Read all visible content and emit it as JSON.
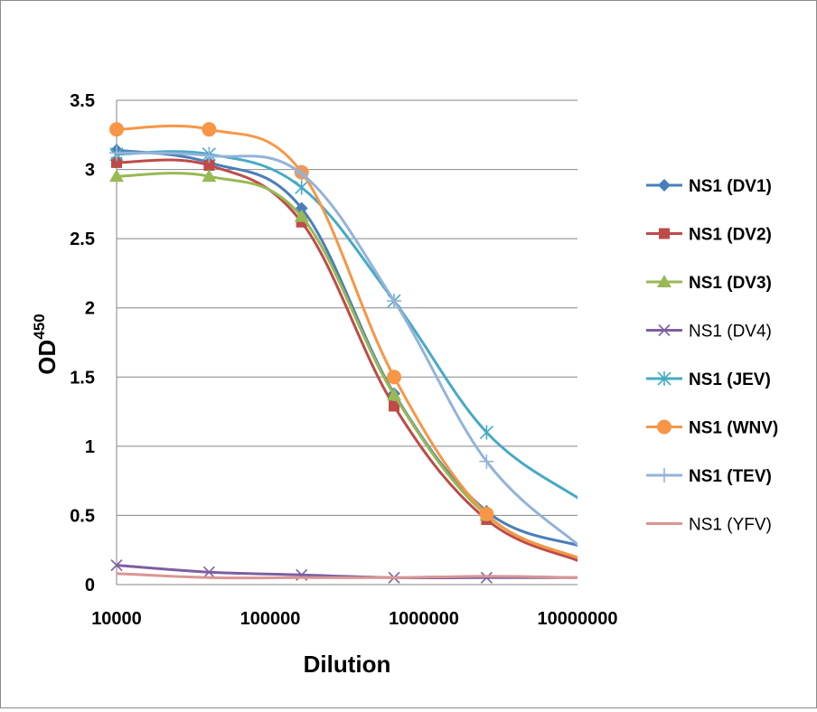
{
  "chart_data": {
    "type": "line",
    "xlabel": "Dilution",
    "ylabel": "OD",
    "ylabel_superscript": "450",
    "x_scale": "log",
    "xlim": [
      10000,
      10000000
    ],
    "ylim": [
      0,
      3.5
    ],
    "y_ticks": [
      "0",
      "0.5",
      "1",
      "1.5",
      "2",
      "2.5",
      "3",
      "3.5"
    ],
    "x_ticks": [
      "10000",
      "100000",
      "1000000",
      "10000000"
    ],
    "grid": "horizontal",
    "legend_position": "right",
    "x": [
      10000,
      40000,
      160000,
      640000,
      2560000,
      10240000
    ],
    "series": [
      {
        "name": "NS1 (DV1)",
        "color": "#4a7ebb",
        "marker": "diamond",
        "bold": true,
        "values": [
          3.14,
          3.05,
          2.72,
          1.38,
          0.53,
          0.28
        ]
      },
      {
        "name": "NS1 (DV2)",
        "color": "#be4b48",
        "marker": "square",
        "bold": true,
        "values": [
          3.05,
          3.03,
          2.62,
          1.29,
          0.47,
          0.17
        ]
      },
      {
        "name": "NS1 (DV3)",
        "color": "#98b954",
        "marker": "triangle",
        "bold": true,
        "values": [
          2.95,
          2.95,
          2.66,
          1.37,
          0.5,
          0.19
        ]
      },
      {
        "name": "NS1 (DV4)",
        "color": "#7d5fa0",
        "marker": "x",
        "bold": false,
        "values": [
          0.14,
          0.09,
          0.07,
          0.05,
          0.05,
          0.05
        ]
      },
      {
        "name": "NS1 (JEV)",
        "color": "#46aac5",
        "marker": "star",
        "bold": true,
        "values": [
          3.11,
          3.11,
          2.87,
          2.05,
          1.1,
          0.62
        ]
      },
      {
        "name": "NS1 (WNV)",
        "color": "#f79646",
        "marker": "circle",
        "bold": true,
        "values": [
          3.29,
          3.29,
          2.98,
          1.5,
          0.51,
          0.19
        ]
      },
      {
        "name": "NS1 (TEV)",
        "color": "#94b3d8",
        "marker": "plus",
        "bold": true,
        "values": [
          3.12,
          3.1,
          2.97,
          2.05,
          0.89,
          0.28
        ]
      },
      {
        "name": "NS1 (YFV)",
        "color": "#d99694",
        "marker": "none",
        "bold": false,
        "values": [
          0.08,
          0.05,
          0.05,
          0.05,
          0.06,
          0.05
        ]
      }
    ]
  }
}
